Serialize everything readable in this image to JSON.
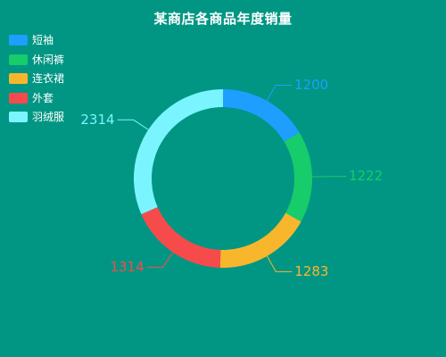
{
  "chart_data": {
    "type": "pie",
    "title": "某商店各商品年度销量",
    "donut": true,
    "legend_position": "top-left",
    "categories": [
      "短袖",
      "休闲裤",
      "连衣裙",
      "外套",
      "羽绒服"
    ],
    "values": [
      1200,
      1222,
      1283,
      1314,
      2314
    ],
    "colors": [
      "#1e9eff",
      "#17cc6a",
      "#f8b62d",
      "#f74b4b",
      "#7af5ff"
    ]
  }
}
